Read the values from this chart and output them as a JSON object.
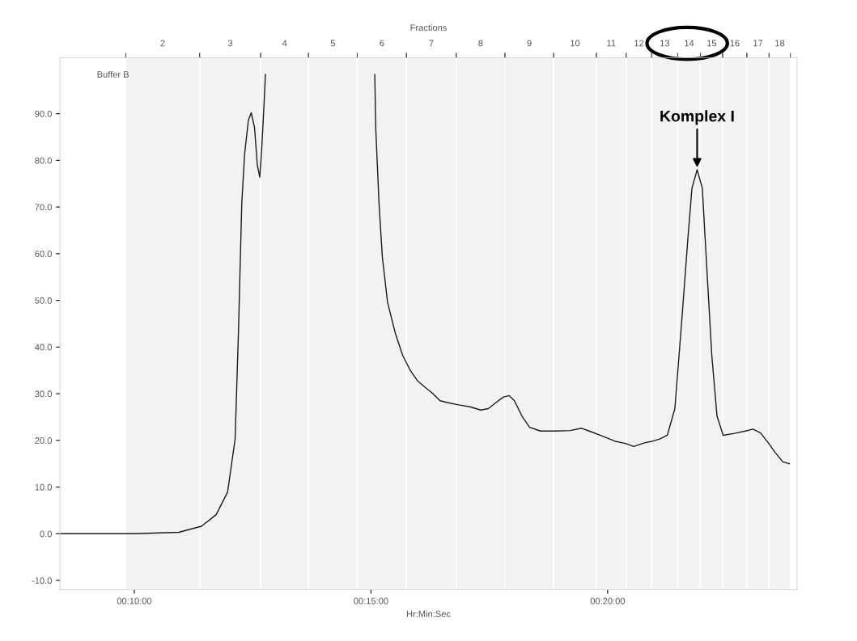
{
  "chart_data": {
    "type": "line",
    "title": "Fractions",
    "xlabel": "Hr:Min:Sec",
    "x": [
      8.43,
      10,
      10.94,
      11.42,
      11.73,
      11.97,
      12.13,
      12.2,
      12.27,
      12.33,
      12.41,
      12.47,
      12.54,
      12.6,
      12.65,
      12.69,
      12.74,
      12.77,
      13.5,
      15.08,
      15.1,
      15.17,
      15.24,
      15.35,
      15.51,
      15.67,
      15.83,
      15.98,
      16.14,
      16.3,
      16.46,
      16.61,
      16.85,
      17.09,
      17.32,
      17.48,
      17.64,
      17.8,
      17.92,
      18.03,
      18.19,
      18.35,
      18.58,
      18.9,
      19.21,
      19.45,
      19.61,
      19.84,
      20.16,
      20.39,
      20.55,
      20.79,
      20.94,
      21.1,
      21.26,
      21.42,
      21.57,
      21.69,
      21.78,
      21.89,
      22,
      22.09,
      22.2,
      22.31,
      22.44,
      22.68,
      22.91,
      23.07,
      23.23,
      23.39,
      23.54,
      23.7,
      23.84
    ],
    "series": [
      {
        "color": "#1a1a1a",
        "values": [
          0,
          0,
          0.3,
          1.6,
          4.1,
          8.9,
          20.3,
          43.1,
          70.7,
          81.3,
          88.6,
          90.2,
          87,
          78.9,
          76.4,
          82.1,
          91.9,
          98.4,
          null,
          98.4,
          87,
          70.7,
          59.3,
          49.6,
          43.1,
          38.2,
          35,
          32.8,
          31.4,
          30.1,
          28.5,
          28.1,
          27.6,
          27.2,
          26.5,
          26.8,
          28.1,
          29.3,
          29.6,
          28.5,
          25.2,
          22.8,
          22,
          22,
          22.1,
          22.6,
          22,
          21.1,
          19.8,
          19.3,
          18.7,
          19.5,
          19.8,
          20.3,
          21.1,
          26.8,
          46.3,
          62.6,
          74,
          78,
          74,
          57.7,
          38.2,
          25.2,
          21.1,
          21.5,
          22,
          22.4,
          21.6,
          19.5,
          17.4,
          15.4,
          15
        ]
      }
    ],
    "xlim": [
      8.43,
      24
    ],
    "ylim": [
      -12,
      102
    ],
    "xticks": [
      {
        "value": 10,
        "label": "00:10:00"
      },
      {
        "value": 15,
        "label": "00:15:00"
      },
      {
        "value": 20,
        "label": "00:20:00"
      }
    ],
    "yticks": [
      {
        "value": -10,
        "label": "-10.0"
      },
      {
        "value": 0,
        "label": "0.0"
      },
      {
        "value": 10,
        "label": "10.0"
      },
      {
        "value": 20,
        "label": "20.0"
      },
      {
        "value": 30,
        "label": "30.0"
      },
      {
        "value": 40,
        "label": "40.0"
      },
      {
        "value": 50,
        "label": "50.0"
      },
      {
        "value": 60,
        "label": "60.0"
      },
      {
        "value": 70,
        "label": "70.0"
      },
      {
        "value": 80,
        "label": "80.0"
      },
      {
        "value": 90,
        "label": "90.0"
      }
    ],
    "bands": [
      {
        "axis": "x",
        "from": 9.82,
        "to": 11.38,
        "label": "2"
      },
      {
        "axis": "x",
        "from": 11.38,
        "to": 12.67,
        "label": "3"
      },
      {
        "axis": "x",
        "from": 12.67,
        "to": 13.68,
        "label": "4"
      },
      {
        "axis": "x",
        "from": 13.68,
        "to": 14.71,
        "label": "5"
      },
      {
        "axis": "x",
        "from": 14.71,
        "to": 15.75,
        "label": "6"
      },
      {
        "axis": "x",
        "from": 15.75,
        "to": 16.8,
        "label": "7"
      },
      {
        "axis": "x",
        "from": 16.8,
        "to": 17.83,
        "label": "8"
      },
      {
        "axis": "x",
        "from": 17.83,
        "to": 18.86,
        "label": "9"
      },
      {
        "axis": "x",
        "from": 18.86,
        "to": 19.76,
        "label": "10"
      },
      {
        "axis": "x",
        "from": 19.76,
        "to": 20.39,
        "label": "11"
      },
      {
        "axis": "x",
        "from": 20.39,
        "to": 20.93,
        "label": "12"
      },
      {
        "axis": "x",
        "from": 20.93,
        "to": 21.48,
        "label": "13"
      },
      {
        "axis": "x",
        "from": 21.48,
        "to": 21.96,
        "label": "14"
      },
      {
        "axis": "x",
        "from": 21.96,
        "to": 22.43,
        "label": "15"
      },
      {
        "axis": "x",
        "from": 22.43,
        "to": 22.94,
        "label": "16"
      },
      {
        "axis": "x",
        "from": 22.94,
        "to": 23.41,
        "label": "17"
      },
      {
        "axis": "x",
        "from": 23.41,
        "to": 23.86,
        "label": "18"
      }
    ],
    "annotations": [
      "Buffer B",
      {
        "text": "Komplex I",
        "x": 21.89,
        "y": 78
      }
    ],
    "grid": false,
    "legend": false,
    "marker": "none",
    "line_style": "solid"
  }
}
